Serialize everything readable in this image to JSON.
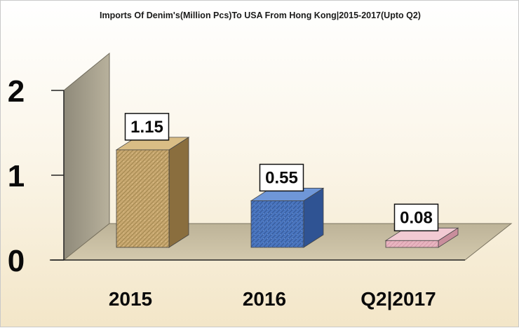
{
  "chart_data": {
    "type": "bar",
    "title": "Imports Of Denim's(Million Pcs)To USA From Hong Kong|2015-2017(Upto Q2)",
    "categories": [
      "2015",
      "2016",
      "Q2|2017"
    ],
    "values": [
      1.15,
      0.55,
      0.08
    ],
    "data_labels": [
      "1.15",
      "0.55",
      "0.08"
    ],
    "y_ticks": [
      "0",
      "1",
      "2"
    ],
    "ylim": [
      0,
      2
    ],
    "xlabel": "",
    "ylabel": "",
    "grid": false,
    "legend": "none",
    "style": "3d",
    "colors": {
      "2015": "#c8a870",
      "2016": "#4a76c0",
      "Q2|2017": "#e8b4c0",
      "floor": "#c7bda3",
      "wall": "#a39c88"
    }
  }
}
